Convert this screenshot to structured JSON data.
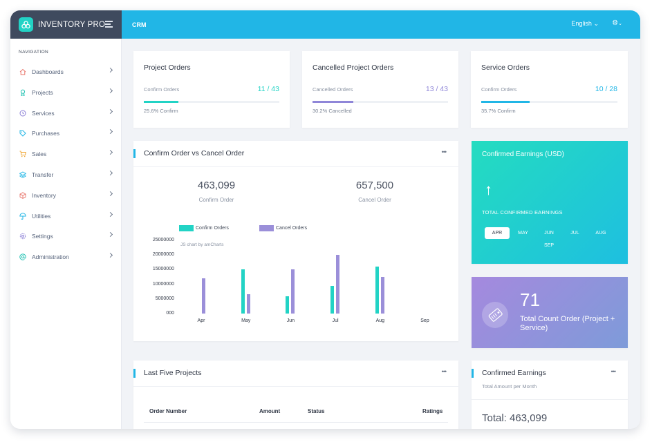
{
  "app": {
    "name": "INVENTORY PRO",
    "page": "CRM",
    "language": "English"
  },
  "sidebar": {
    "heading": "NAVIGATION",
    "items": [
      {
        "label": "Dashboards",
        "icon": "home-icon",
        "color": "#e8746a"
      },
      {
        "label": "Projects",
        "icon": "award-icon",
        "color": "#24c2b3"
      },
      {
        "label": "Services",
        "icon": "clock-icon",
        "color": "#8b7fd6"
      },
      {
        "label": "Purchases",
        "icon": "tag-icon",
        "color": "#21b6e6"
      },
      {
        "label": "Sales",
        "icon": "cart-icon",
        "color": "#f0a93a"
      },
      {
        "label": "Transfer",
        "icon": "layers-icon",
        "color": "#21b6e6"
      },
      {
        "label": "Inventory",
        "icon": "box-icon",
        "color": "#e8746a"
      },
      {
        "label": "Utilities",
        "icon": "umbrella-icon",
        "color": "#21b6e6"
      },
      {
        "label": "Settings",
        "icon": "settings-icon",
        "color": "#8b7fd6"
      },
      {
        "label": "Administration",
        "icon": "at-icon",
        "color": "#24c2b3"
      }
    ]
  },
  "stats": [
    {
      "title": "Project Orders",
      "label": "Confirm Orders",
      "value": "11 / 43",
      "caption": "25.6% Confirm",
      "progress": 0.256,
      "color": "#22d3c5"
    },
    {
      "title": "Cancelled Project Orders",
      "label": "Cancelled Orders",
      "value": "13 / 43",
      "caption": "30.2% Cancelled",
      "progress": 0.302,
      "color": "#8f86d8"
    },
    {
      "title": "Service Orders",
      "label": "Confirm Orders",
      "value": "10 / 28",
      "caption": "35.7% Confirm",
      "progress": 0.357,
      "color": "#21b6e6"
    }
  ],
  "order_chart": {
    "title": "Confirm Order vs Cancel Order",
    "confirm_total": "463,099",
    "confirm_label": "Confirm Order",
    "cancel_total": "657,500",
    "cancel_label": "Cancel Order",
    "watermark": "JS chart by amCharts"
  },
  "chart_data": {
    "type": "bar",
    "categories": [
      "Apr",
      "May",
      "Jun",
      "Jul",
      "Aug",
      "Sep"
    ],
    "series": [
      {
        "name": "Confirm Orders",
        "color": "#22d3c5",
        "values": [
          0,
          15000000,
          6000000,
          9500000,
          16000000,
          0
        ]
      },
      {
        "name": "Cancel Orders",
        "color": "#9b8fd9",
        "values": [
          12000000,
          6500000,
          15000000,
          20000000,
          12500000,
          0
        ]
      }
    ],
    "yticks": [
      "25000000",
      "20000000",
      "15000000",
      "10000000",
      "5000000",
      "000"
    ],
    "ylim": [
      0,
      25000000
    ],
    "legend_position": "top"
  },
  "confirmed_card": {
    "title": "Confirmed Earnings (USD)",
    "subtitle": "TOTAL CONFIRMED EARNINGS",
    "months": [
      "APR",
      "MAY",
      "JUN",
      "JUL",
      "AUG",
      "SEP"
    ],
    "active_month": "APR"
  },
  "count_card": {
    "value": "71",
    "label": "Total Count Order (Project + Service)"
  },
  "projects": {
    "title": "Last Five Projects",
    "columns": [
      "Order Number",
      "Amount",
      "Status",
      "Ratings"
    ]
  },
  "earnings": {
    "title": "Confirmed Earnings",
    "subtitle": "Total Amount per Month",
    "total": "Total: 463,099"
  }
}
